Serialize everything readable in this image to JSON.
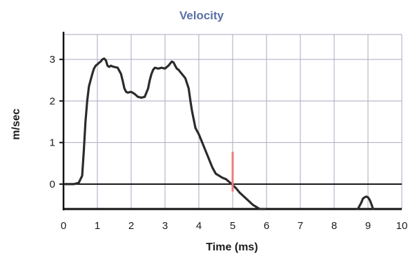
{
  "chart_data": {
    "type": "line",
    "title": "Velocity",
    "xlabel": "Time (ms)",
    "ylabel": "m/sec",
    "xlim": [
      0,
      10
    ],
    "ylim": [
      -0.6,
      3.6
    ],
    "x_ticks": [
      "0",
      "1",
      "2",
      "3",
      "4",
      "5",
      "6",
      "7",
      "8",
      "9",
      "10"
    ],
    "y_ticks": [
      "0",
      "1",
      "2",
      "3"
    ],
    "y_tick_values": [
      0,
      1,
      2,
      3
    ],
    "grid": true,
    "series": [
      {
        "color": "#2b2b2b",
        "x": [
          0.05,
          0.3,
          0.45,
          0.55,
          0.6,
          0.65,
          0.7,
          0.75,
          0.8,
          0.85,
          0.9,
          0.95,
          1.0,
          1.05,
          1.1,
          1.15,
          1.2,
          1.25,
          1.3,
          1.35,
          1.4,
          1.45,
          1.5,
          1.6,
          1.7,
          1.75,
          1.8,
          1.85,
          1.9,
          2.0,
          2.1,
          2.2,
          2.3,
          2.4,
          2.5,
          2.55,
          2.6,
          2.65,
          2.7,
          2.8,
          2.9,
          3.0,
          3.1,
          3.2,
          3.25,
          3.3,
          3.35,
          3.4,
          3.5,
          3.6,
          3.7,
          3.75,
          3.8,
          3.9,
          4.0,
          4.1,
          4.2,
          4.3,
          4.4,
          4.5,
          4.6,
          4.7,
          4.8,
          4.9,
          5.0,
          5.1,
          5.2,
          5.4,
          5.6,
          5.8,
          5.9,
          5.95
        ],
        "y": [
          0.0,
          0.0,
          0.03,
          0.2,
          0.8,
          1.5,
          2.0,
          2.35,
          2.5,
          2.65,
          2.78,
          2.85,
          2.88,
          2.92,
          2.95,
          3.0,
          3.02,
          2.98,
          2.85,
          2.82,
          2.85,
          2.83,
          2.82,
          2.8,
          2.65,
          2.48,
          2.3,
          2.22,
          2.2,
          2.22,
          2.17,
          2.1,
          2.08,
          2.1,
          2.3,
          2.5,
          2.65,
          2.75,
          2.8,
          2.78,
          2.8,
          2.78,
          2.85,
          2.95,
          2.93,
          2.85,
          2.78,
          2.75,
          2.65,
          2.55,
          2.3,
          2.0,
          1.75,
          1.35,
          1.2,
          1.0,
          0.8,
          0.6,
          0.4,
          0.25,
          0.2,
          0.15,
          0.12,
          0.05,
          -0.02,
          -0.1,
          -0.2,
          -0.35,
          -0.5,
          -0.6,
          -0.6,
          -0.6
        ]
      },
      {
        "color": "#2b2b2b",
        "x": [
          8.7,
          8.8,
          8.85,
          8.9,
          8.95,
          9.0,
          9.05,
          9.1,
          9.15
        ],
        "y": [
          -0.6,
          -0.45,
          -0.35,
          -0.32,
          -0.3,
          -0.32,
          -0.38,
          -0.48,
          -0.6
        ]
      }
    ],
    "baselines": [
      0,
      -0.6
    ],
    "marker": {
      "x": 5.0,
      "y_from": -0.18,
      "y_to": 0.78,
      "color": "#f07a7a"
    }
  }
}
